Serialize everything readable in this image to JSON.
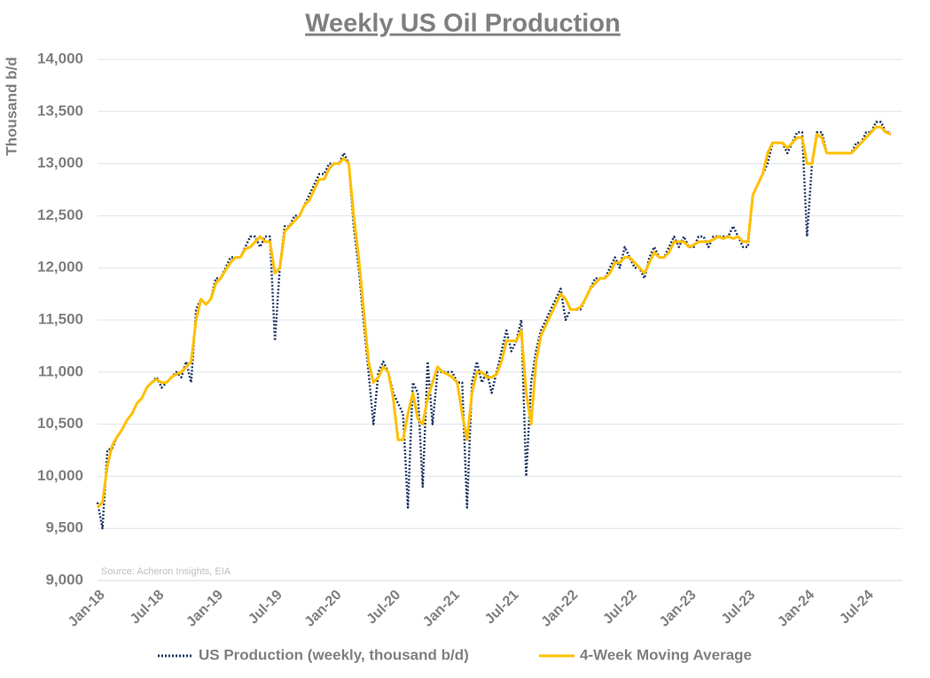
{
  "chart_data": {
    "type": "line",
    "title": "Weekly US Oil Production",
    "y_label": "Thousand b/d",
    "annotation": "Source: Acheron Insights, EIA",
    "categories": [
      "Jan-18",
      null,
      null,
      null,
      null,
      null,
      null,
      null,
      null,
      null,
      null,
      null,
      "Jul-18",
      null,
      null,
      null,
      null,
      null,
      null,
      null,
      null,
      null,
      null,
      null,
      "Jan-19",
      null,
      null,
      null,
      null,
      null,
      null,
      null,
      null,
      null,
      null,
      null,
      "Jul-19",
      null,
      null,
      null,
      null,
      null,
      null,
      null,
      null,
      null,
      null,
      null,
      "Jan-20",
      null,
      null,
      null,
      null,
      null,
      null,
      null,
      null,
      null,
      null,
      null,
      "Jul-20",
      null,
      null,
      null,
      null,
      null,
      null,
      null,
      null,
      null,
      null,
      null,
      "Jan-21",
      null,
      null,
      null,
      null,
      null,
      null,
      null,
      null,
      null,
      null,
      null,
      "Jul-21",
      null,
      null,
      null,
      null,
      null,
      null,
      null,
      null,
      null,
      null,
      null,
      "Jan-22",
      null,
      null,
      null,
      null,
      null,
      null,
      null,
      null,
      null,
      null,
      null,
      "Jul-22",
      null,
      null,
      null,
      null,
      null,
      null,
      null,
      null,
      null,
      null,
      null,
      "Jan-23",
      null,
      null,
      null,
      null,
      null,
      null,
      null,
      null,
      null,
      null,
      null,
      "Jul-23",
      null,
      null,
      null,
      null,
      null,
      null,
      null,
      null,
      null,
      null,
      null,
      "Jan-24",
      null,
      null,
      null,
      null,
      null,
      null,
      null,
      null,
      null,
      null,
      null,
      "Jul-24",
      null,
      null,
      null,
      null,
      null
    ],
    "series": [
      {
        "name": "US Production (weekly, thousand b/d)",
        "color": "#1f3864",
        "dash": "dotted",
        "values": [
          9750,
          9500,
          10250,
          10270,
          10380,
          10450,
          10540,
          10600,
          10700,
          10750,
          10850,
          10900,
          10950,
          10850,
          10900,
          10950,
          11000,
          10950,
          11100,
          10900,
          11600,
          11700,
          11650,
          11700,
          11900,
          11900,
          12000,
          12100,
          12100,
          12100,
          12200,
          12300,
          12300,
          12200,
          12300,
          12300,
          11300,
          12000,
          12400,
          12400,
          12500,
          12500,
          12600,
          12700,
          12800,
          12900,
          12900,
          13000,
          13000,
          13000,
          13100,
          13000,
          12400,
          12000,
          11500,
          11000,
          10500,
          11000,
          11100,
          11000,
          10800,
          10700,
          10600,
          9700,
          10900,
          10800,
          9900,
          11100,
          10500,
          11000,
          11000,
          11000,
          11000,
          10900,
          10900,
          9700,
          10900,
          11100,
          10900,
          11000,
          10800,
          11000,
          11200,
          11400,
          11200,
          11300,
          11500,
          10000,
          10900,
          11200,
          11400,
          11500,
          11600,
          11700,
          11800,
          11500,
          11600,
          11600,
          11600,
          11700,
          11800,
          11900,
          11900,
          11900,
          12000,
          12100,
          12000,
          12200,
          12100,
          12000,
          12000,
          11900,
          12100,
          12200,
          12100,
          12100,
          12200,
          12300,
          12200,
          12300,
          12200,
          12200,
          12300,
          12300,
          12200,
          12300,
          12300,
          12300,
          12300,
          12400,
          12300,
          12200,
          12200,
          12700,
          12800,
          12900,
          13000,
          13200,
          13200,
          13200,
          13100,
          13200,
          13300,
          13300,
          12300,
          13000,
          13300,
          13300,
          13100,
          13100,
          13100,
          13100,
          13100,
          13100,
          13200,
          13200,
          13300,
          13300,
          13400,
          13400,
          13300,
          13300
        ]
      },
      {
        "name": "4-Week Moving Average",
        "color": "#ffc000",
        "dash": "solid",
        "values": [
          9700,
          9750,
          10100,
          10300,
          10380,
          10450,
          10540,
          10600,
          10700,
          10750,
          10850,
          10900,
          10930,
          10900,
          10900,
          10950,
          10980,
          11000,
          11050,
          11100,
          11500,
          11700,
          11650,
          11700,
          11850,
          11900,
          11980,
          12050,
          12100,
          12100,
          12180,
          12200,
          12250,
          12300,
          12250,
          12250,
          11950,
          12000,
          12350,
          12400,
          12450,
          12500,
          12600,
          12650,
          12750,
          12850,
          12850,
          12950,
          13000,
          13000,
          13050,
          13000,
          12500,
          12100,
          11600,
          11100,
          10900,
          10950,
          11050,
          11000,
          10750,
          10350,
          10350,
          10600,
          10800,
          10550,
          10500,
          10750,
          10900,
          11050,
          11000,
          10980,
          10950,
          10900,
          10600,
          10350,
          10800,
          11000,
          11000,
          10950,
          10950,
          10980,
          11100,
          11300,
          11300,
          11300,
          11400,
          10800,
          10500,
          11100,
          11350,
          11450,
          11550,
          11650,
          11750,
          11700,
          11600,
          11600,
          11620,
          11700,
          11800,
          11850,
          11900,
          11900,
          11950,
          12050,
          12050,
          12100,
          12100,
          12050,
          12000,
          11950,
          12050,
          12150,
          12100,
          12100,
          12150,
          12250,
          12250,
          12250,
          12200,
          12220,
          12250,
          12250,
          12250,
          12270,
          12300,
          12280,
          12300,
          12280,
          12300,
          12250,
          12250,
          12700,
          12800,
          12900,
          13100,
          13200,
          13200,
          13200,
          13150,
          13200,
          13250,
          13250,
          13000,
          13000,
          13280,
          13250,
          13100,
          13100,
          13100,
          13100,
          13100,
          13100,
          13150,
          13200,
          13250,
          13300,
          13350,
          13350,
          13300,
          13280
        ]
      }
    ],
    "ylim": [
      9000,
      14000
    ],
    "yticks": [
      {
        "value": 9000,
        "label": "9,000"
      },
      {
        "value": 9500,
        "label": "9,500"
      },
      {
        "value": 10000,
        "label": "10,000"
      },
      {
        "value": 10500,
        "label": "10,500"
      },
      {
        "value": 11000,
        "label": "11,000"
      },
      {
        "value": 11500,
        "label": "11,500"
      },
      {
        "value": 12000,
        "label": "12,000"
      },
      {
        "value": 12500,
        "label": "12,500"
      },
      {
        "value": 13000,
        "label": "13,000"
      },
      {
        "value": 13500,
        "label": "13,500"
      },
      {
        "value": 14000,
        "label": "14,000"
      }
    ],
    "grid": true,
    "legend": "bottom"
  }
}
